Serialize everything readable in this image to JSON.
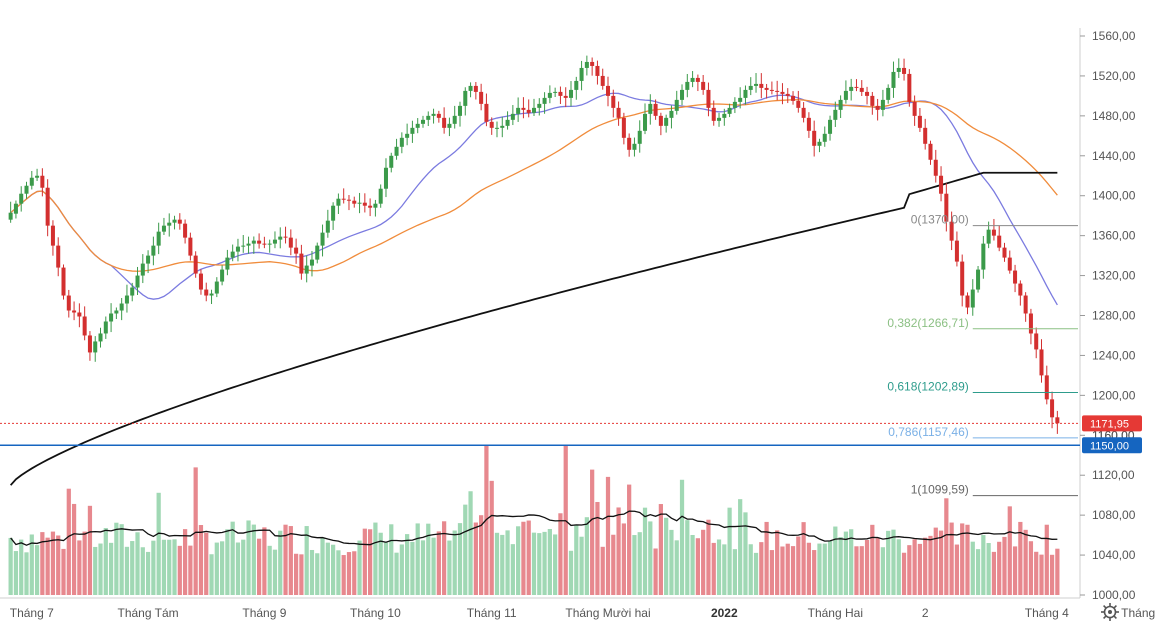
{
  "chart_data": {
    "type": "candlestick",
    "title": "",
    "y_axis": {
      "ylim": [
        990,
        1565
      ],
      "ticks": [
        "1560,00",
        "1520,00",
        "1480,00",
        "1440,00",
        "1400,00",
        "1360,00",
        "1320,00",
        "1280,00",
        "1240,00",
        "1200,00",
        "1160,00",
        "1120,00",
        "1080,00",
        "1040,00",
        "1000,00"
      ],
      "tick_values": [
        1560,
        1520,
        1480,
        1440,
        1400,
        1360,
        1320,
        1280,
        1240,
        1200,
        1160,
        1120,
        1080,
        1040,
        1000
      ]
    },
    "x_axis": {
      "labels": [
        {
          "text": "Tháng 7",
          "bar": 4,
          "bold": false
        },
        {
          "text": "Tháng Tám",
          "bar": 26,
          "bold": false
        },
        {
          "text": "Tháng 9",
          "bar": 48,
          "bold": false
        },
        {
          "text": "Tháng 10",
          "bar": 69,
          "bold": false
        },
        {
          "text": "Tháng 11",
          "bar": 91,
          "bold": false
        },
        {
          "text": "Tháng Mười hai",
          "bar": 113,
          "bold": false
        },
        {
          "text": "2022",
          "bar": 135,
          "bold": true
        },
        {
          "text": "Tháng Hai",
          "bar": 156,
          "bold": false
        },
        {
          "text": "2",
          "bar": 173,
          "bold": false
        },
        {
          "text": "Tháng 4",
          "bar": 196,
          "bold": false
        },
        {
          "text": "Tháng Năm",
          "bar": 216,
          "bold": false
        }
      ]
    },
    "series_close": [
      1383,
      1392,
      1402,
      1410,
      1418,
      1420,
      1408,
      1370,
      1350,
      1328,
      1300,
      1285,
      1283,
      1279,
      1260,
      1243,
      1254,
      1262,
      1274,
      1282,
      1285,
      1292,
      1300,
      1308,
      1320,
      1332,
      1340,
      1350,
      1364,
      1370,
      1373,
      1376,
      1372,
      1358,
      1340,
      1322,
      1306,
      1300,
      1302,
      1314,
      1326,
      1338,
      1344,
      1349,
      1350,
      1352,
      1355,
      1352,
      1351,
      1352,
      1356,
      1359,
      1358,
      1348,
      1342,
      1322,
      1330,
      1336,
      1350,
      1363,
      1375,
      1390,
      1397,
      1396,
      1395,
      1392,
      1393,
      1390,
      1388,
      1392,
      1407,
      1428,
      1440,
      1449,
      1458,
      1462,
      1468,
      1472,
      1476,
      1480,
      1482,
      1478,
      1468,
      1472,
      1480,
      1490,
      1505,
      1510,
      1504,
      1492,
      1474,
      1468,
      1468,
      1470,
      1476,
      1482,
      1488,
      1486,
      1483,
      1488,
      1492,
      1498,
      1503,
      1504,
      1500,
      1498,
      1506,
      1515,
      1528,
      1534,
      1530,
      1520,
      1510,
      1500,
      1488,
      1478,
      1458,
      1446,
      1452,
      1465,
      1482,
      1492,
      1480,
      1470,
      1478,
      1485,
      1496,
      1506,
      1514,
      1518,
      1514,
      1506,
      1488,
      1475,
      1478,
      1482,
      1488,
      1494,
      1498,
      1506,
      1510,
      1512,
      1508,
      1506,
      1505,
      1504,
      1502,
      1500,
      1495,
      1488,
      1478,
      1465,
      1450,
      1454,
      1462,
      1476,
      1486,
      1496,
      1505,
      1509,
      1508,
      1504,
      1500,
      1490,
      1486,
      1496,
      1508,
      1524,
      1528,
      1522,
      1494,
      1480,
      1468,
      1452,
      1436,
      1420,
      1402,
      1374,
      1355,
      1334,
      1300,
      1288,
      1306,
      1326,
      1352,
      1366,
      1360,
      1348,
      1338,
      1325,
      1312,
      1300,
      1282,
      1262,
      1246,
      1220,
      1196,
      1178,
      1172
    ],
    "series_open": [
      1376,
      1382,
      1392,
      1402,
      1410,
      1418,
      1420,
      1408,
      1370,
      1350,
      1328,
      1300,
      1285,
      1283,
      1279,
      1260,
      1243,
      1254,
      1262,
      1274,
      1282,
      1285,
      1292,
      1300,
      1308,
      1320,
      1332,
      1340,
      1350,
      1364,
      1370,
      1373,
      1376,
      1372,
      1358,
      1340,
      1322,
      1306,
      1300,
      1302,
      1314,
      1326,
      1338,
      1344,
      1349,
      1350,
      1352,
      1355,
      1352,
      1351,
      1352,
      1356,
      1359,
      1358,
      1348,
      1342,
      1322,
      1330,
      1336,
      1350,
      1363,
      1375,
      1390,
      1397,
      1396,
      1395,
      1392,
      1393,
      1390,
      1388,
      1392,
      1407,
      1428,
      1440,
      1449,
      1458,
      1462,
      1468,
      1472,
      1476,
      1480,
      1482,
      1478,
      1468,
      1472,
      1480,
      1490,
      1505,
      1510,
      1504,
      1492,
      1474,
      1468,
      1468,
      1470,
      1476,
      1482,
      1488,
      1486,
      1483,
      1488,
      1492,
      1498,
      1503,
      1504,
      1500,
      1498,
      1506,
      1515,
      1528,
      1534,
      1530,
      1520,
      1510,
      1500,
      1488,
      1478,
      1458,
      1446,
      1452,
      1465,
      1482,
      1492,
      1480,
      1470,
      1478,
      1485,
      1496,
      1506,
      1514,
      1518,
      1514,
      1506,
      1488,
      1475,
      1478,
      1482,
      1488,
      1494,
      1498,
      1506,
      1510,
      1512,
      1508,
      1506,
      1505,
      1504,
      1502,
      1500,
      1495,
      1488,
      1478,
      1465,
      1450,
      1454,
      1462,
      1476,
      1486,
      1496,
      1505,
      1509,
      1508,
      1504,
      1500,
      1490,
      1486,
      1496,
      1508,
      1524,
      1528,
      1522,
      1494,
      1480,
      1468,
      1452,
      1436,
      1420,
      1402,
      1374,
      1355,
      1334,
      1300,
      1288,
      1306,
      1326,
      1352,
      1366,
      1360,
      1348,
      1338,
      1325,
      1312,
      1300,
      1282,
      1262,
      1246,
      1220,
      1196,
      1178
    ],
    "moving_averages": [
      {
        "color": "#7b7be0",
        "period": 20
      },
      {
        "color": "#f08c3c",
        "period": 50
      },
      {
        "color": "#111111",
        "period": 200
      }
    ],
    "fibonacci": [
      {
        "label": "0(1370,00)",
        "value": 1370.0,
        "color": "#888888"
      },
      {
        "label": "0,382(1266,71)",
        "value": 1266.71,
        "color": "#8cc084"
      },
      {
        "label": "0,618(1202,89)",
        "value": 1202.89,
        "color": "#2e9c8c"
      },
      {
        "label": "0,786(1157,46)",
        "value": 1157.46,
        "color": "#7ab0e6"
      },
      {
        "label": "1(1099,59)",
        "value": 1099.59,
        "color": "#666666"
      }
    ],
    "price_badge": {
      "label": "1171,95",
      "value": 1171.95,
      "color": "#e53935"
    },
    "support_badge": {
      "label": "1150,00",
      "value": 1150.0,
      "color": "#1565c0"
    },
    "hidden_badge": {
      "label": "1160,00"
    },
    "volume_scale_max": 1150,
    "volume_scale_min": 1000
  },
  "icons": {
    "settings": "gear-icon"
  }
}
